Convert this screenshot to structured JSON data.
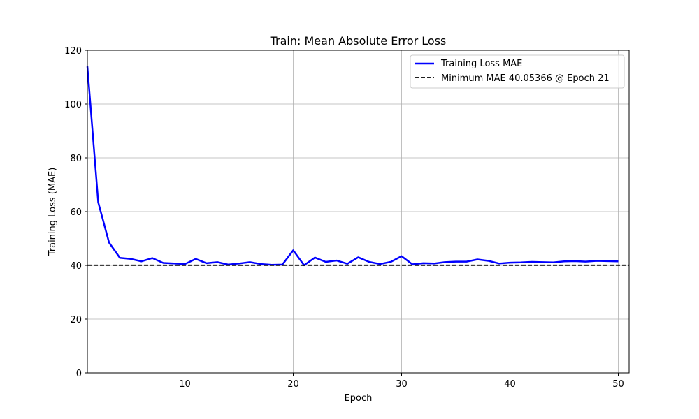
{
  "chart_data": {
    "type": "line",
    "title": "Train: Mean Absolute Error Loss",
    "xlabel": "Epoch",
    "ylabel": "Training Loss (MAE)",
    "xlim": [
      1,
      51
    ],
    "ylim": [
      0,
      120
    ],
    "xticks": [
      10,
      20,
      30,
      40,
      50
    ],
    "yticks": [
      0,
      20,
      40,
      60,
      80,
      100,
      120
    ],
    "grid": true,
    "legend_position": "top-right",
    "series": [
      {
        "name": "Training Loss MAE",
        "color": "#0000ff",
        "style": "solid",
        "x": [
          1,
          2,
          3,
          4,
          5,
          6,
          7,
          8,
          9,
          10,
          11,
          12,
          13,
          14,
          15,
          16,
          17,
          18,
          19,
          20,
          21,
          22,
          23,
          24,
          25,
          26,
          27,
          28,
          29,
          30,
          31,
          32,
          33,
          34,
          35,
          36,
          37,
          38,
          39,
          40,
          41,
          42,
          43,
          44,
          45,
          46,
          47,
          48,
          49,
          50
        ],
        "y": [
          114.0,
          63.5,
          48.5,
          42.8,
          42.4,
          41.5,
          42.7,
          40.9,
          40.7,
          40.5,
          42.4,
          40.8,
          41.2,
          40.3,
          40.7,
          41.2,
          40.5,
          40.2,
          40.3,
          45.6,
          40.05,
          42.9,
          41.3,
          41.8,
          40.6,
          43.0,
          41.3,
          40.5,
          41.3,
          43.4,
          40.4,
          40.8,
          40.7,
          41.2,
          41.4,
          41.4,
          42.2,
          41.7,
          40.7,
          41.0,
          41.1,
          41.3,
          41.2,
          41.1,
          41.5,
          41.6,
          41.4,
          41.7,
          41.6,
          41.5
        ]
      },
      {
        "name": "Minimum MAE 40.05366 @ Epoch 21",
        "color": "#000000",
        "style": "dashed",
        "hline": 40.05366
      }
    ]
  }
}
